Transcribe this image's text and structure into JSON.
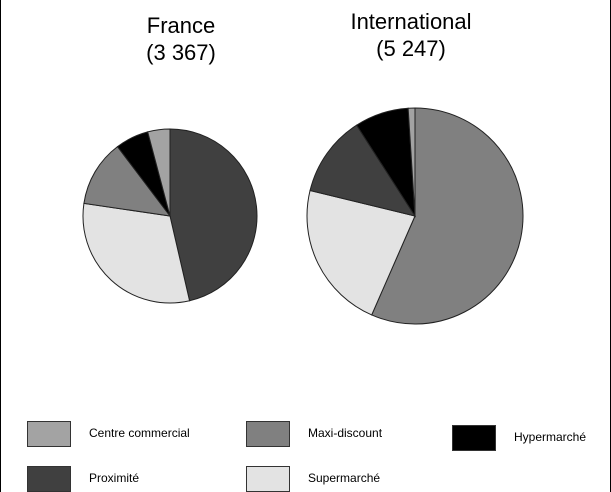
{
  "chart_data": [
    {
      "type": "pie",
      "title": "France",
      "subtitle": "(3 367)",
      "total": 3367,
      "slices": [
        {
          "label": "Proximité",
          "value": 45
        },
        {
          "label": "Supermarché",
          "value": 30
        },
        {
          "label": "Maxi-discount",
          "value": 12
        },
        {
          "label": "Hypermarché",
          "value": 6
        },
        {
          "label": "Centre commercial",
          "value": 4
        }
      ]
    },
    {
      "type": "pie",
      "title": "International",
      "subtitle": "(5 247)",
      "total": 5247,
      "slices": [
        {
          "label": "Maxi-discount",
          "value": 56
        },
        {
          "label": "Supermarché",
          "value": 22
        },
        {
          "label": "Proximité",
          "value": 12
        },
        {
          "label": "Hypermarché",
          "value": 8
        },
        {
          "label": "Centre commercial",
          "value": 1
        }
      ]
    }
  ],
  "legend": [
    {
      "label": "Centre commercial",
      "color": "#a3a3a3"
    },
    {
      "label": "Maxi-discount",
      "color": "#808080"
    },
    {
      "label": "Hypermarché",
      "color": "#000000"
    },
    {
      "label": "Proximité",
      "color": "#404040"
    },
    {
      "label": "Supermarché",
      "color": "#e3e3e3"
    }
  ],
  "colors": {
    "Centre commercial": "#a3a3a3",
    "Maxi-discount": "#808080",
    "Hypermarché": "#000000",
    "Proximité": "#404040",
    "Supermarché": "#e3e3e3"
  }
}
